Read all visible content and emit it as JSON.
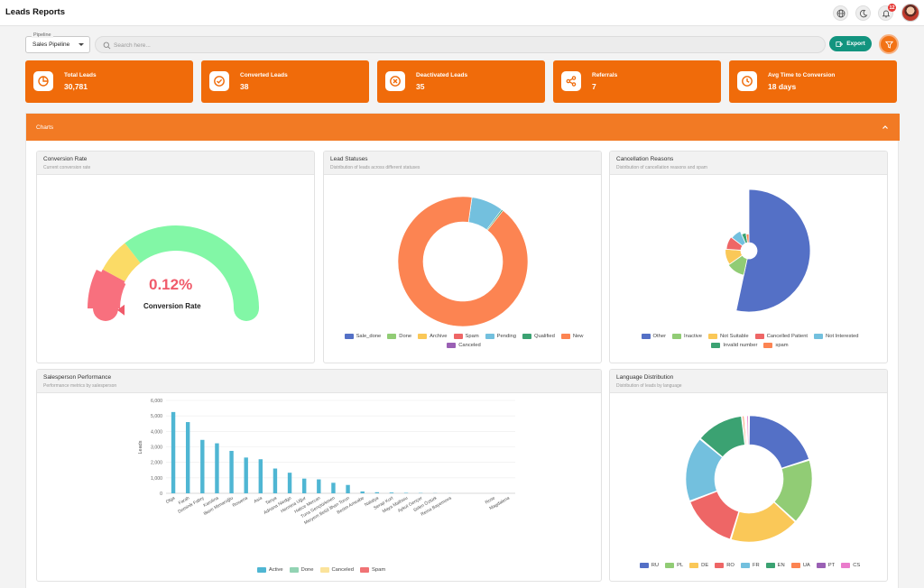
{
  "app": {
    "title": "Leads Reports",
    "notification_count": "12"
  },
  "filters": {
    "pipeline_label": "Pipeline",
    "pipeline_value": "Sales Pipeline",
    "search_placeholder": "Search here...",
    "export_label": "Export"
  },
  "kpis": [
    {
      "label": "Total Leads",
      "value": "30,781",
      "icon": "pie-chart-icon"
    },
    {
      "label": "Converted Leads",
      "value": "38",
      "icon": "check-circle-icon"
    },
    {
      "label": "Deactivated Leads",
      "value": "35",
      "icon": "x-circle-icon"
    },
    {
      "label": "Referrals",
      "value": "7",
      "icon": "share-icon"
    },
    {
      "label": "Avg Time to Conversion",
      "value": "18 days",
      "icon": "clock-icon"
    }
  ],
  "charts_section": {
    "title": "Charts"
  },
  "colors": {
    "accent": "#f06b0a",
    "export": "#12947f",
    "palette": {
      "blue": "#5470c6",
      "green": "#91cc75",
      "yellow": "#fac858",
      "red": "#ee6666",
      "cyan": "#73c0de",
      "teal": "#3ba272",
      "orange": "#fc8452",
      "purple": "#9a60b4",
      "pink": "#ea7ccc"
    }
  },
  "cards": {
    "conversion": {
      "title": "Conversion Rate",
      "subtitle": "Current conversion rate"
    },
    "statuses": {
      "title": "Lead Statuses",
      "subtitle": "Distribution of leads across different statuses"
    },
    "cancellation": {
      "title": "Cancellation Reasons",
      "subtitle": "Distribution of cancellation reasons and spam"
    },
    "salesperson": {
      "title": "Salesperson Performance",
      "subtitle": "Performance metrics by salesperson"
    },
    "language": {
      "title": "Language Distribution",
      "subtitle": "Distribution of leads by language"
    }
  },
  "chart_data": [
    {
      "id": "conversion",
      "type": "gauge",
      "value_label": "0.12%",
      "label": "Conversion Rate",
      "value": 0.12
    },
    {
      "id": "statuses",
      "type": "pie",
      "donut": true,
      "labels": [
        "Sale_done",
        "Done",
        "Archive",
        "Spam",
        "Pending",
        "Qualified",
        "New",
        "Canceled"
      ],
      "colors": [
        "#5470c6",
        "#91cc75",
        "#fac858",
        "#ee6666",
        "#73c0de",
        "#3ba272",
        "#fc8452",
        "#9a60b4"
      ],
      "values": [
        10,
        0,
        0,
        0,
        2450,
        120,
        28190,
        0
      ]
    },
    {
      "id": "cancellation",
      "type": "pie",
      "rose": true,
      "labels": [
        "Other",
        "Inactive",
        "Not Suitable",
        "Cancelled Patient",
        "Not Interested",
        "Invalid number",
        "spam"
      ],
      "colors": [
        "#5470c6",
        "#91cc75",
        "#fac858",
        "#ee6666",
        "#73c0de",
        "#3ba272",
        "#fc8452"
      ],
      "values": [
        40,
        9,
        8,
        7,
        6,
        3,
        2
      ]
    },
    {
      "id": "salesperson",
      "type": "bar",
      "ylabel": "Leads",
      "ylim": [
        0,
        6000
      ],
      "yticks": [
        "0",
        "1,000",
        "2,000",
        "3,000",
        "4,000",
        "5,000",
        "6,000"
      ],
      "categories": [
        "Olga",
        "Farah",
        "Dominik Fabry",
        "Karolina",
        "Ilkem Mimaroğlu",
        "Rowena",
        "Asia",
        "Tanya",
        "Adriana Niedgo",
        "Hermina Uğur",
        "Hatice Mercan",
        "Tuna Gençtürkmen",
        "Meryem Betül İlhan Torun",
        "Besim Ameabe",
        "Natalya",
        "Serap Kurt",
        "Maya Mathieu",
        "Aykut Gençer",
        "Selen Öztürk",
        "Reina Bayemova",
        "",
        "",
        "Rose",
        "Magdalena"
      ],
      "series": [
        {
          "name": "Active",
          "color": "#4fb6d3",
          "values": [
            5250,
            4600,
            3450,
            3230,
            2740,
            2310,
            2200,
            1600,
            1330,
            950,
            900,
            680,
            540,
            120,
            70,
            50,
            30,
            20,
            10,
            5,
            0,
            0,
            2,
            2
          ]
        },
        {
          "name": "Done",
          "color": "#92d3b3",
          "values": [
            0,
            0,
            0,
            0,
            0,
            0,
            0,
            0,
            0,
            0,
            0,
            0,
            0,
            0,
            0,
            0,
            0,
            0,
            0,
            0,
            0,
            0,
            0,
            0
          ]
        },
        {
          "name": "Canceled",
          "color": "#fbe39b",
          "values": [
            0,
            0,
            0,
            0,
            0,
            0,
            0,
            0,
            0,
            0,
            0,
            0,
            0,
            0,
            0,
            0,
            0,
            0,
            0,
            0,
            0,
            0,
            0,
            0
          ]
        },
        {
          "name": "Spam",
          "color": "#f07375",
          "values": [
            0,
            0,
            0,
            0,
            0,
            0,
            0,
            0,
            0,
            0,
            0,
            0,
            0,
            0,
            0,
            0,
            0,
            0,
            0,
            0,
            0,
            0,
            0,
            0
          ]
        }
      ]
    },
    {
      "id": "language",
      "type": "pie",
      "donut": true,
      "labels": [
        "RU",
        "PL",
        "DE",
        "RO",
        "FR",
        "EN",
        "UA",
        "PT",
        "CS"
      ],
      "colors": [
        "#5470c6",
        "#91cc75",
        "#fac858",
        "#ee6666",
        "#73c0de",
        "#3ba272",
        "#fc8452",
        "#9a60b4",
        "#ea7ccc"
      ],
      "values": [
        18,
        15,
        16,
        13,
        15,
        11,
        0.6,
        0.4,
        0.6
      ]
    }
  ]
}
